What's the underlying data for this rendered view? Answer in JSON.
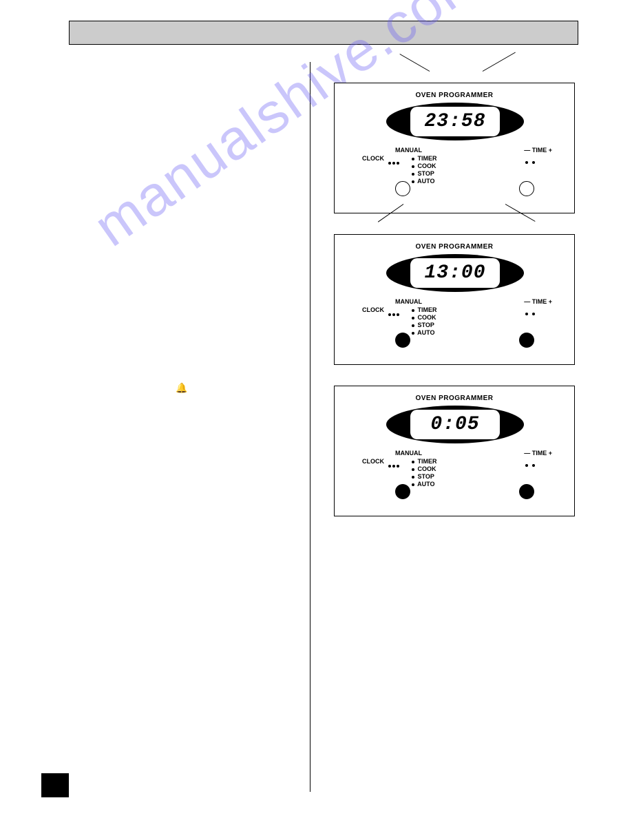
{
  "watermark": "manualshive.com",
  "bell_glyph": "🔔",
  "panels": [
    {
      "title": "OVEN  PROGRAMMER",
      "display": "23:58",
      "manual_label": "MANUAL",
      "clock_label": "CLOCK",
      "menu_items": [
        "TIMER",
        "COOK",
        "STOP",
        "AUTO"
      ],
      "time_label": "— TIME +",
      "knob_style": "open",
      "annotations": true
    },
    {
      "title": "OVEN  PROGRAMMER",
      "display": "13:00",
      "manual_label": "MANUAL",
      "clock_label": "CLOCK",
      "menu_items": [
        "TIMER",
        "COOK",
        "STOP",
        "AUTO"
      ],
      "time_label": "— TIME +",
      "knob_style": "solid",
      "annotations": false
    },
    {
      "title": "OVEN  PROGRAMMER",
      "display": "0:05",
      "manual_label": "MANUAL",
      "clock_label": "CLOCK",
      "menu_items": [
        "TIMER",
        "COOK",
        "STOP",
        "AUTO"
      ],
      "time_label": "— TIME +",
      "knob_style": "solid",
      "annotations": false
    }
  ],
  "colors": {
    "title_bar_bg": "#cccccc",
    "watermark_color": "#6a5ff5",
    "page_bg": "#ffffff",
    "black": "#000000"
  }
}
